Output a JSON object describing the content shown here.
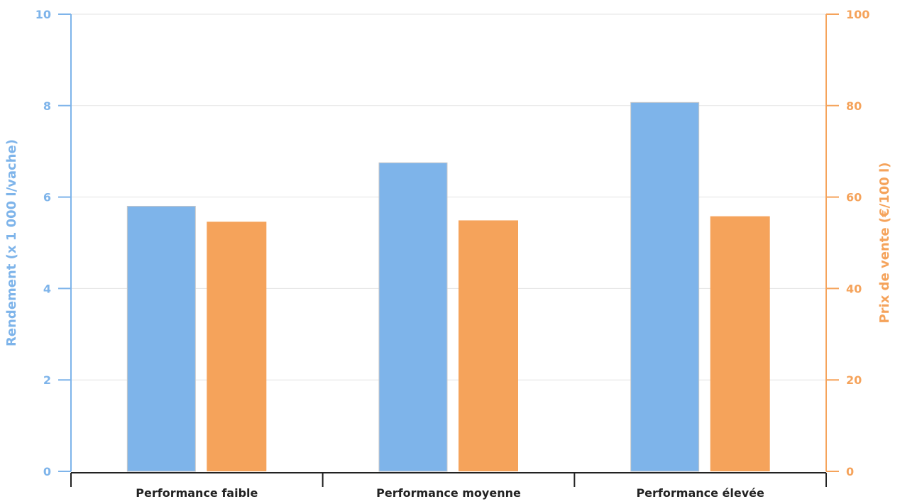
{
  "chart_data": {
    "type": "bar",
    "categories": [
      "Performance faible",
      "Performance moyenne",
      "Performance élevée"
    ],
    "series": [
      {
        "name": "Rendement",
        "axis": "left",
        "color": "#7eb4ea",
        "values": [
          5.8,
          6.75,
          8.07
        ]
      },
      {
        "name": "Prix de vente",
        "axis": "right",
        "color": "#f5a35b",
        "values": [
          54.6,
          54.9,
          55.8
        ]
      }
    ],
    "yaxis_left": {
      "label": "Rendement (x 1 000 l/vache)",
      "lim": [
        0,
        10
      ],
      "ticks": [
        0,
        2,
        4,
        6,
        8,
        10
      ],
      "color": "#7eb4ea"
    },
    "yaxis_right": {
      "label": "Prix de vente (€/100 l)",
      "lim": [
        0,
        100
      ],
      "ticks": [
        0,
        20,
        40,
        60,
        80,
        100
      ],
      "color": "#f5a35b"
    },
    "title": "",
    "xlabel": "",
    "grid": true
  }
}
